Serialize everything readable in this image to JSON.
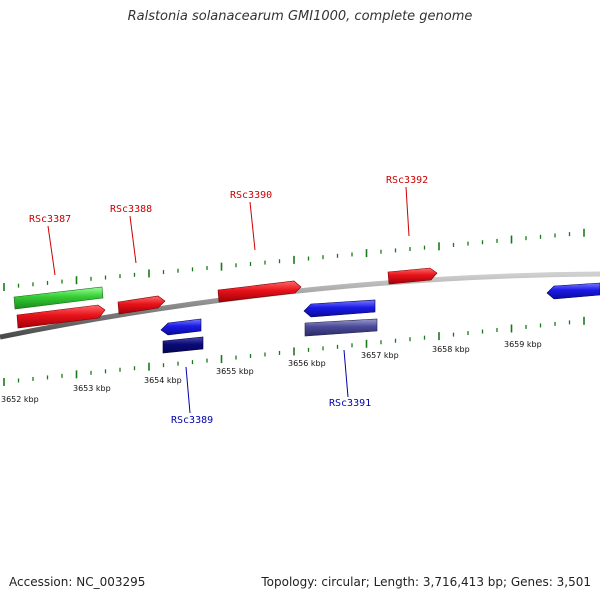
{
  "header": {
    "title": "Ralstonia solanacearum GMI1000, complete genome"
  },
  "footer": {
    "accession": "Accession: NC_003295",
    "summary": "Topology: circular; Length: 3,716,413 bp; Genes: 3,501"
  },
  "colors": {
    "forward_gene": "#e8121a",
    "reverse_gene": "#1a1ae6",
    "forward_label": "#cc0000",
    "reverse_label": "#0000aa",
    "forward_tick": "#1a7a1a",
    "reverse_tick": "#1a7a1a",
    "backbone": "#8a8a8a",
    "green_feature": "#33cc33",
    "dark_blue_feature": "#0a0a7a",
    "purple_feature": "#4a4a99"
  },
  "scale": {
    "labels": [
      "3652 kbp",
      "3653 kbp",
      "3654 kbp",
      "3655 kbp",
      "3656 kbp",
      "3657 kbp",
      "3658 kbp",
      "3659 kbp"
    ]
  },
  "genes": {
    "forward": [
      "RSc3387",
      "RSc3388",
      "RSc3390",
      "RSc3392"
    ],
    "reverse": [
      "RSc3389",
      "RSc3391"
    ]
  }
}
